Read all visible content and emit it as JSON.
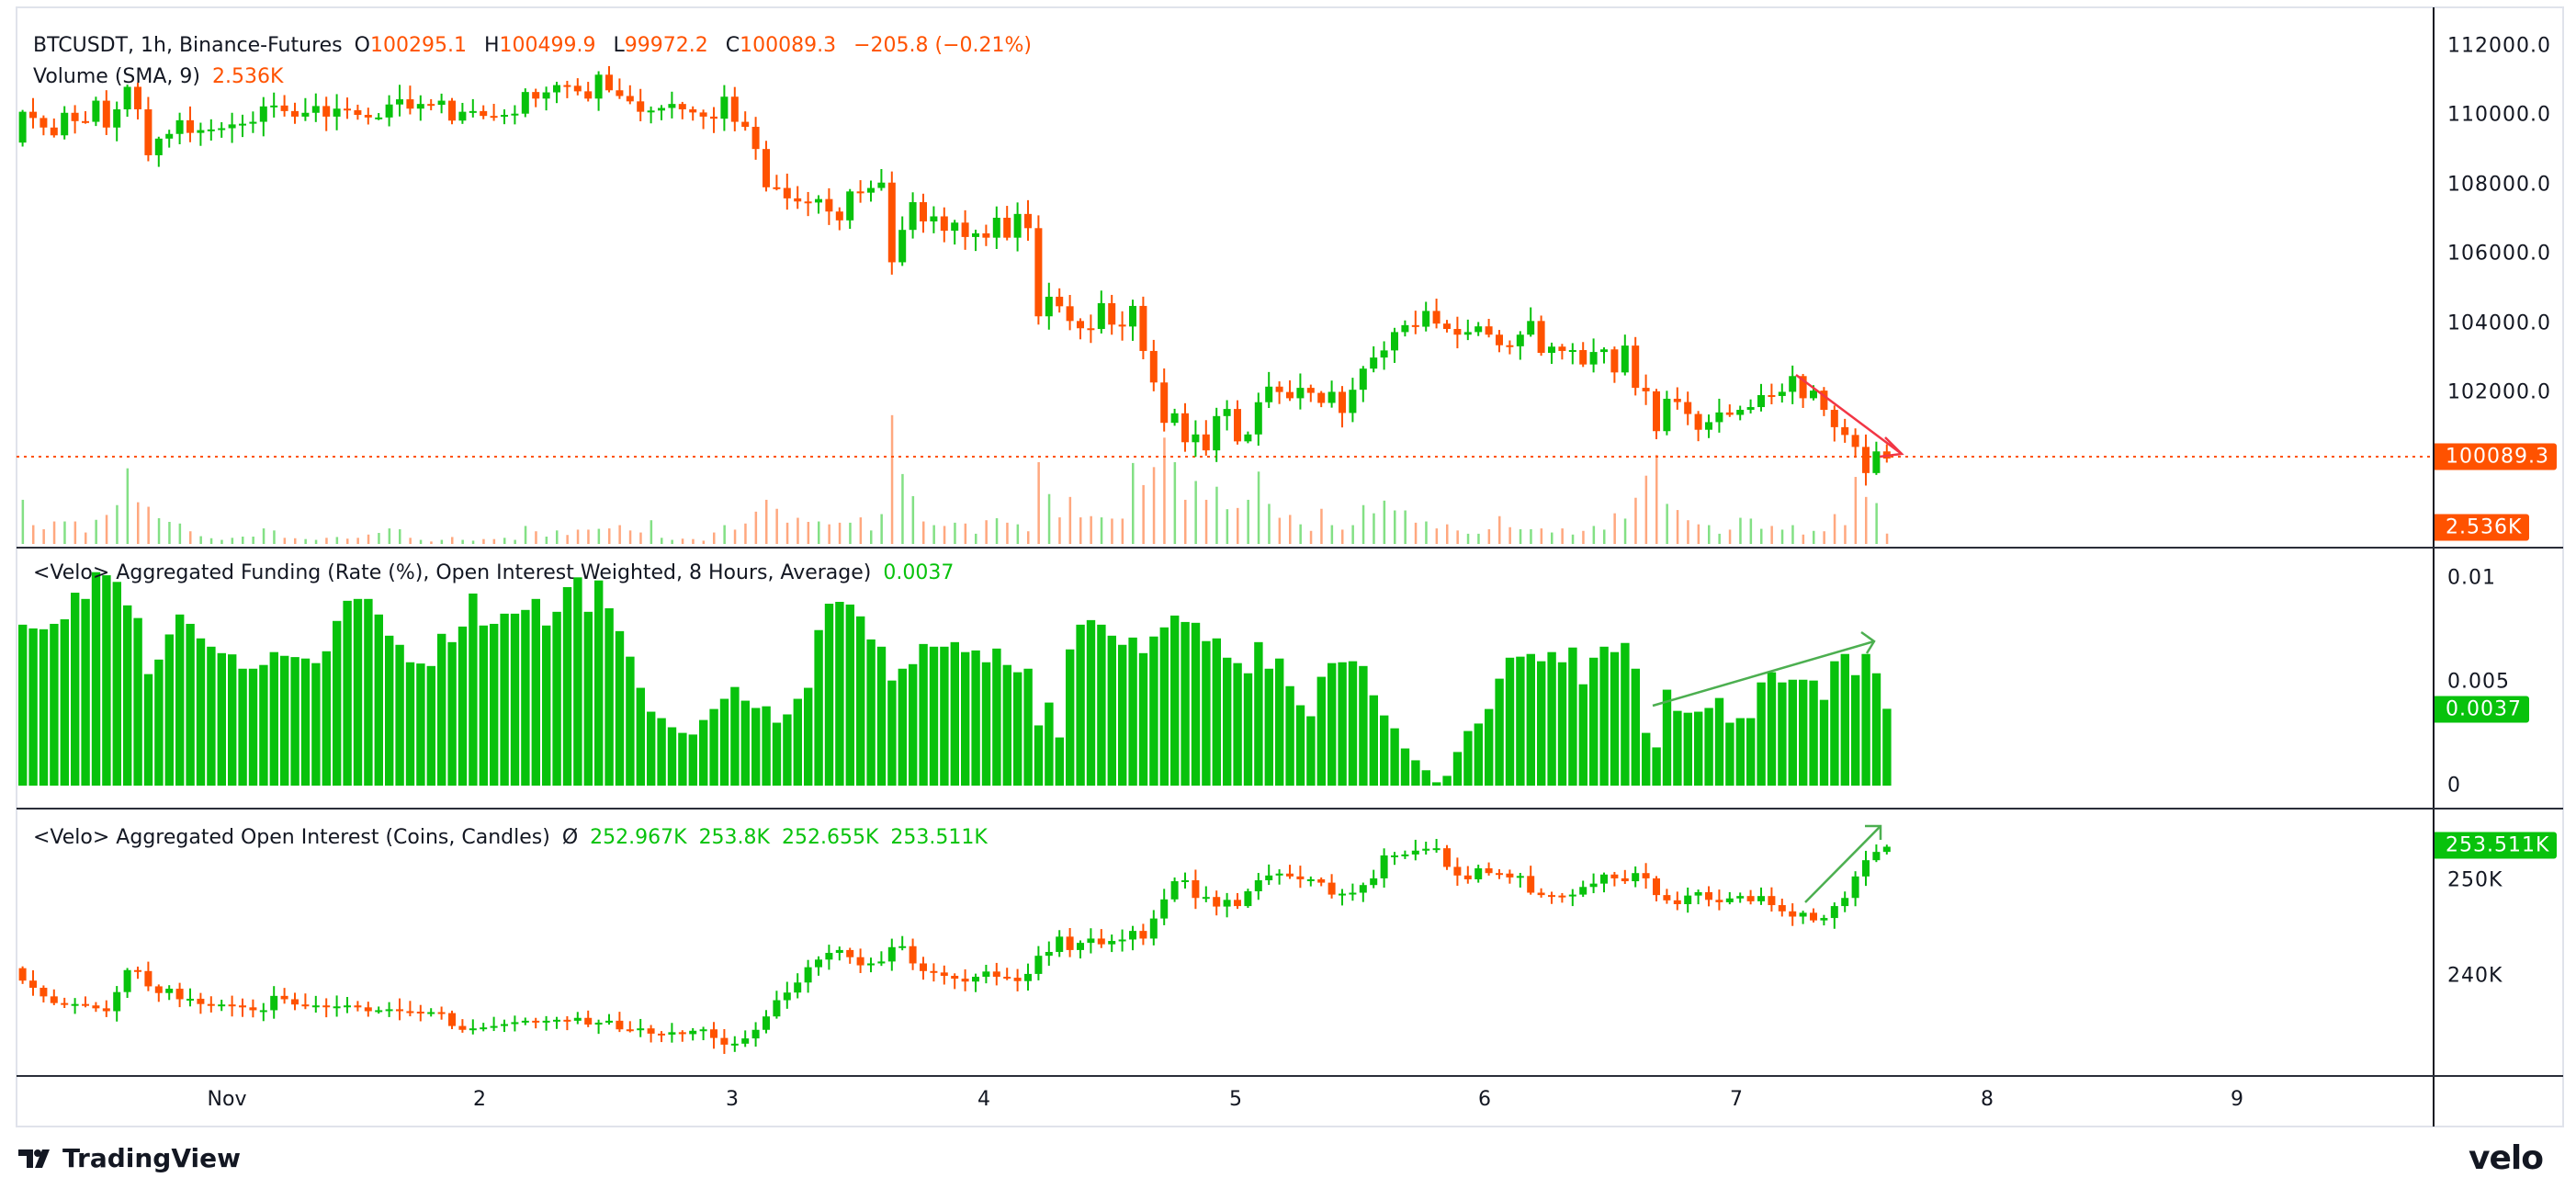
{
  "symbol_legend": {
    "title": "BTCUSDT, 1h, Binance-Futures",
    "o_label": "O",
    "o_value": "100295.1",
    "h_label": "H",
    "h_value": "100499.9",
    "l_label": "L",
    "l_value": "99972.2",
    "c_label": "C",
    "c_value": "100089.3",
    "change": "−205.8 (−0.21%)"
  },
  "volume_legend": {
    "title": "Volume (SMA, 9)",
    "value": "2.536K"
  },
  "funding_legend": {
    "title": "<Velo> Aggregated Funding (Rate (%), Open Interest Weighted, 8 Hours, Average)",
    "value": "0.0037"
  },
  "oi_legend": {
    "title": "<Velo> Aggregated Open Interest (Coins, Candles)",
    "symbol": "Ø",
    "o": "252.967K",
    "h": "253.8K",
    "l": "252.655K",
    "c": "253.511K"
  },
  "price_axis": {
    "ticks": [
      "112000.0",
      "110000.0",
      "108000.0",
      "106000.0",
      "104000.0",
      "102000.0"
    ],
    "last_price": "100089.3",
    "last_volume": "2.536K"
  },
  "funding_axis": {
    "ticks": [
      "0.01",
      "0.005",
      "0"
    ],
    "last_value": "0.0037"
  },
  "oi_axis": {
    "ticks": [
      "250K",
      "240K"
    ],
    "last_value": "253.511K"
  },
  "time_axis": {
    "labels": [
      "Nov",
      "2",
      "3",
      "4",
      "5",
      "6",
      "7",
      "8",
      "9"
    ]
  },
  "branding": {
    "left": "TradingView",
    "right": "velo"
  },
  "colors": {
    "up": "#08c20c",
    "down": "#ff5200",
    "arrow_down": "#f23645",
    "arrow_up": "#4caf50"
  },
  "chart_data": [
    {
      "type": "candlestick",
      "name": "BTCUSDT, 1h, Binance-Futures",
      "interval": "1h",
      "ylim": [
        99500,
        112500
      ],
      "first_open": 109210,
      "close": [
        110100,
        109920,
        109645,
        109420,
        110070,
        109830,
        109810,
        110420,
        109645,
        110170,
        110820,
        110170,
        108845,
        109325,
        109460,
        109855,
        109490,
        109570,
        109590,
        109625,
        109735,
        109755,
        109810,
        110255,
        110280,
        110120,
        109960,
        110070,
        110265,
        109960,
        110190,
        110145,
        110010,
        109935,
        109935,
        110310,
        110460,
        110190,
        110325,
        110300,
        110420,
        109845,
        110100,
        110120,
        109980,
        109960,
        110010,
        110045,
        110670,
        110480,
        110660,
        110870,
        110850,
        110690,
        110480,
        111170,
        110720,
        110555,
        110400,
        110100,
        110135,
        110210,
        110325,
        110170,
        110080,
        109960,
        109900,
        110535,
        109810,
        109665,
        109025,
        107920,
        107900,
        107600,
        107510,
        107480,
        107580,
        107220,
        106965,
        107800,
        107765,
        107900,
        108055,
        105755,
        106690,
        107490,
        106935,
        107080,
        106665,
        106900,
        106485,
        106590,
        106465,
        107040,
        106465,
        107150,
        106740,
        104195,
        104760,
        104485,
        104060,
        103850,
        103830,
        104575,
        103955,
        103900,
        104495,
        103195,
        102285,
        101120,
        101395,
        100560,
        100785,
        100325,
        101315,
        101520,
        100585,
        100785,
        101715,
        102165,
        102010,
        101830,
        102130,
        101985,
        101695,
        102015,
        101405,
        102075,
        102685,
        103005,
        103210,
        103740,
        103940,
        103895,
        104350,
        103985,
        103830,
        103665,
        103740,
        103905,
        103665,
        103360,
        103330,
        103665,
        104060,
        103140,
        103320,
        103195,
        103220,
        102805,
        103165,
        103240,
        102575,
        103350,
        102130,
        102030,
        100880,
        101815,
        101720,
        101375,
        100920,
        101140,
        101420,
        101350,
        101495,
        101575,
        101920,
        101895,
        102015,
        102470,
        101830,
        102050,
        101495,
        100995,
        100770,
        100425,
        99670,
        100295.1,
        100089.3
      ],
      "last_candle": {
        "open": 100295.1,
        "high": 100499.9,
        "low": 99972.2,
        "close": 100089.3
      }
    },
    {
      "type": "bar",
      "name": "Volume",
      "unit": "K",
      "values": [
        10.8,
        4.6,
        3.6,
        5.5,
        5.5,
        5.5,
        2.8,
        5.9,
        7.1,
        9.5,
        18.5,
        10.2,
        9.1,
        6.3,
        5.4,
        5.0,
        3.1,
        1.9,
        1.4,
        1.0,
        1.5,
        1.8,
        1.8,
        3.8,
        3.3,
        1.5,
        1.4,
        1.2,
        1.0,
        1.5,
        1.7,
        1.3,
        1.5,
        2.3,
        2.7,
        3.8,
        3.6,
        1.5,
        1.0,
        0.6,
        1.0,
        1.7,
        1.0,
        0.8,
        1.2,
        1.2,
        1.5,
        1.0,
        4.4,
        3.1,
        1.8,
        3.3,
        2.2,
        3.5,
        3.5,
        3.7,
        3.8,
        4.6,
        3.3,
        2.8,
        5.8,
        1.5,
        1.0,
        1.3,
        1.2,
        0.8,
        2.8,
        4.6,
        3.5,
        5.0,
        7.9,
        10.8,
        8.6,
        5.2,
        6.4,
        5.4,
        5.5,
        4.8,
        5.2,
        5.2,
        6.5,
        3.3,
        7.3,
        31.5,
        17.1,
        11.7,
        5.5,
        4.6,
        4.4,
        5.2,
        5.0,
        2.5,
        5.8,
        6.3,
        5.2,
        4.8,
        3.1,
        20.0,
        12.2,
        6.5,
        11.5,
        6.5,
        6.8,
        6.5,
        6.2,
        6.2,
        19.8,
        14.4,
        18.8,
        26.0,
        20.0,
        10.8,
        15.4,
        10.8,
        14.0,
        8.5,
        8.8,
        10.8,
        17.7,
        9.8,
        6.4,
        7.1,
        4.8,
        3.2,
        8.6,
        4.6,
        3.5,
        4.6,
        9.5,
        7.5,
        10.6,
        8.2,
        8.2,
        5.2,
        5.5,
        3.8,
        4.8,
        3.3,
        2.5,
        2.5,
        3.6,
        6.8,
        4.1,
        3.6,
        3.6,
        3.8,
        2.8,
        3.8,
        2.3,
        3.2,
        4.4,
        3.5,
        7.5,
        6.2,
        11.3,
        16.7,
        21.8,
        9.8,
        8.3,
        5.8,
        4.8,
        4.6,
        2.5,
        3.5,
        6.4,
        6.2,
        3.7,
        4.4,
        3.5,
        4.6,
        2.3,
        3.2,
        3.1,
        7.3,
        4.6,
        16.4,
        11.5,
        10.0,
        2.536
      ]
    },
    {
      "type": "bar",
      "name": "<Velo> Aggregated Funding",
      "ylim": [
        0,
        0.0105
      ],
      "values": [
        0.00775,
        0.00757,
        0.00753,
        0.00779,
        0.00801,
        0.00929,
        0.00899,
        0.01028,
        0.01013,
        0.00981,
        0.00868,
        0.00807,
        0.00537,
        0.00607,
        0.00728,
        0.00824,
        0.00779,
        0.00709,
        0.00669,
        0.00638,
        0.00632,
        0.00563,
        0.00563,
        0.00581,
        0.00643,
        0.00625,
        0.00619,
        0.00612,
        0.0059,
        0.00647,
        0.00793,
        0.0089,
        0.00899,
        0.00899,
        0.00824,
        0.00722,
        0.00678,
        0.00594,
        0.00588,
        0.00576,
        0.00731,
        0.00691,
        0.00766,
        0.00925,
        0.00771,
        0.00779,
        0.00828,
        0.00828,
        0.00846,
        0.00899,
        0.00771,
        0.00837,
        0.00956,
        0.01003,
        0.00837,
        0.00988,
        0.00854,
        0.00744,
        0.00621,
        0.00471,
        0.00356,
        0.00325,
        0.00281,
        0.00254,
        0.00246,
        0.00316,
        0.00369,
        0.00418,
        0.00475,
        0.00409,
        0.00374,
        0.00382,
        0.00303,
        0.00343,
        0.00418,
        0.00471,
        0.00749,
        0.00876,
        0.00885,
        0.00872,
        0.00815,
        0.00704,
        0.00669,
        0.00506,
        0.00563,
        0.00585,
        0.00682,
        0.00669,
        0.00669,
        0.00691,
        0.00643,
        0.00651,
        0.00594,
        0.0066,
        0.00581,
        0.00546,
        0.00563,
        0.0029,
        0.004,
        0.00232,
        0.00656,
        0.00775,
        0.00797,
        0.00775,
        0.00722,
        0.00678,
        0.00713,
        0.00638,
        0.00718,
        0.00762,
        0.00819,
        0.00788,
        0.00784,
        0.00696,
        0.00709,
        0.00616,
        0.0059,
        0.00541,
        0.00691,
        0.00563,
        0.00612,
        0.00479,
        0.00387,
        0.00334,
        0.00524,
        0.0059,
        0.00594,
        0.00599,
        0.00576,
        0.00435,
        0.00338,
        0.00276,
        0.00179,
        0.00122,
        0.00074,
        0.00016,
        0.00047,
        0.00162,
        0.00263,
        0.00299,
        0.00369,
        0.00515,
        0.00616,
        0.00621,
        0.00634,
        0.00599,
        0.00643,
        0.00594,
        0.00665,
        0.00488,
        0.00616,
        0.00669,
        0.00643,
        0.00687,
        0.00563,
        0.00254,
        0.00184,
        0.00462,
        0.0036,
        0.00351,
        0.00356,
        0.00374,
        0.00422,
        0.00303,
        0.00325,
        0.00325,
        0.00497,
        0.00546,
        0.00497,
        0.0051,
        0.0051,
        0.00506,
        0.00413,
        0.00599,
        0.00634,
        0.00532,
        0.00634,
        0.00541,
        0.0037
      ]
    },
    {
      "type": "candlestick",
      "name": "<Velo> Aggregated Open Interest",
      "unit": "K",
      "ylim": [
        231,
        259
      ],
      "first_open": 240.8,
      "close": [
        239.5,
        238.75,
        237.85,
        237.15,
        237.0,
        237.05,
        236.9,
        236.6,
        236.3,
        238.3,
        240.6,
        240.5,
        238.9,
        238.2,
        238.65,
        237.55,
        237.6,
        237.05,
        237.0,
        237.0,
        236.9,
        236.7,
        236.4,
        236.4,
        237.9,
        237.55,
        237.0,
        236.9,
        236.9,
        236.8,
        236.8,
        236.9,
        236.7,
        236.3,
        236.4,
        236.5,
        236.3,
        236.25,
        236.2,
        236.2,
        236.1,
        234.75,
        234.35,
        234.5,
        234.6,
        234.75,
        234.95,
        235.15,
        235.3,
        235.2,
        235.3,
        235.4,
        235.3,
        235.6,
        234.9,
        235.1,
        235.3,
        234.4,
        234.35,
        234.5,
        233.95,
        233.85,
        234.1,
        233.9,
        234.25,
        234.4,
        233.5,
        232.8,
        232.9,
        233.45,
        234.35,
        235.75,
        237.45,
        238.25,
        239.3,
        240.9,
        241.7,
        242.4,
        242.7,
        241.95,
        241.1,
        241.3,
        241.5,
        243.0,
        243.1,
        241.3,
        240.5,
        240.35,
        240.0,
        239.7,
        239.4,
        239.9,
        240.45,
        239.9,
        239.8,
        239.45,
        240.2,
        242.1,
        242.5,
        244.1,
        242.7,
        243.45,
        243.9,
        243.3,
        243.65,
        243.8,
        244.7,
        243.9,
        246.0,
        248.0,
        249.9,
        250.0,
        248.15,
        248.25,
        247.25,
        247.95,
        247.3,
        248.85,
        250.0,
        250.5,
        250.7,
        250.4,
        250.1,
        250.1,
        249.75,
        248.5,
        248.6,
        248.7,
        249.5,
        250.2,
        252.6,
        252.6,
        252.7,
        253.1,
        253.3,
        253.35,
        251.4,
        250.5,
        250.1,
        251.25,
        250.75,
        250.7,
        250.3,
        250.45,
        248.7,
        248.45,
        248.4,
        248.35,
        248.5,
        249.3,
        249.65,
        250.6,
        250.2,
        249.9,
        250.75,
        250.2,
        248.45,
        247.9,
        247.5,
        248.4,
        248.75,
        247.95,
        247.7,
        248.1,
        248.35,
        247.8,
        248.35,
        247.4,
        246.75,
        246.2,
        246.6,
        245.8,
        246.05,
        247.3,
        248.15,
        250.4,
        252.1,
        252.967,
        253.511
      ]
    }
  ]
}
